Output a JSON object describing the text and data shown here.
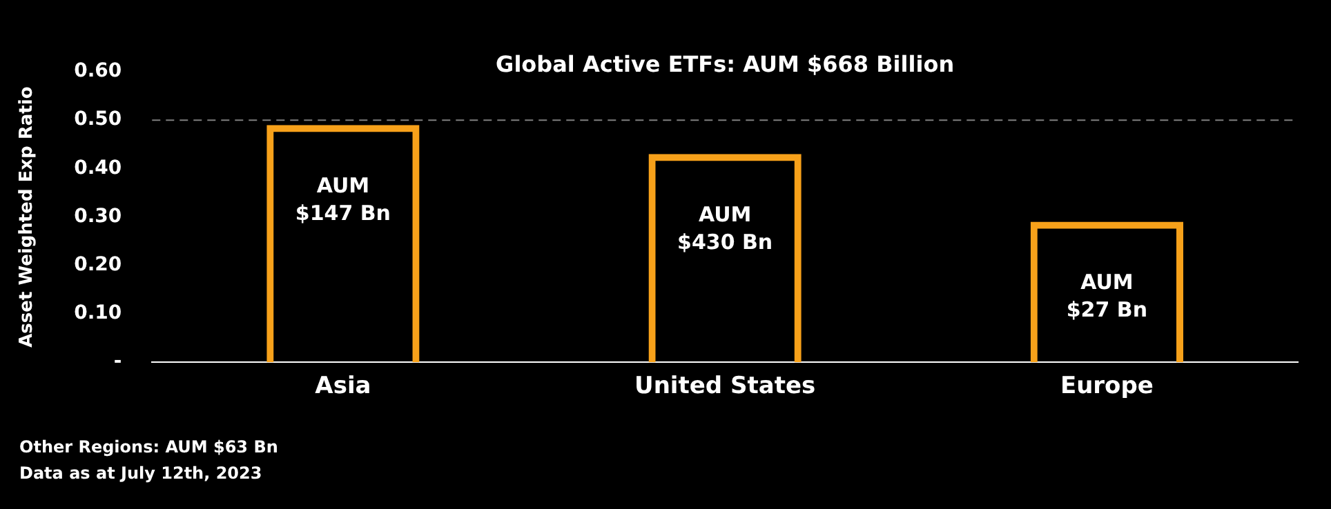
{
  "chart_data": {
    "type": "bar",
    "title": "Global Active ETFs: AUM $668 Billion",
    "ylabel": "Asset Weighted Exp Ratio",
    "categories": [
      "Asia",
      "United States",
      "Europe"
    ],
    "values": [
      0.49,
      0.43,
      0.29
    ],
    "color": "#f7a11a",
    "ylim": [
      0,
      0.6
    ],
    "yticks": [
      {
        "value": 0,
        "label": "-"
      },
      {
        "value": 0.1,
        "label": "0.10"
      },
      {
        "value": 0.2,
        "label": "0.20"
      },
      {
        "value": 0.3,
        "label": "0.30"
      },
      {
        "value": 0.4,
        "label": "0.40"
      },
      {
        "value": 0.5,
        "label": "0.50"
      },
      {
        "value": 0.6,
        "label": "0.60"
      }
    ],
    "grid": false,
    "legend": false,
    "ref_lines": [
      {
        "axis": "y",
        "value": 0.5,
        "color": "#808080",
        "line_style": "dashed"
      }
    ],
    "annotations": [
      "AUM\n$147 Bn",
      "AUM\n$430 Bn",
      "AUM\n$27 Bn",
      "Other Regions: AUM $63 Bn",
      "Data as at July 12th, 2023"
    ]
  }
}
